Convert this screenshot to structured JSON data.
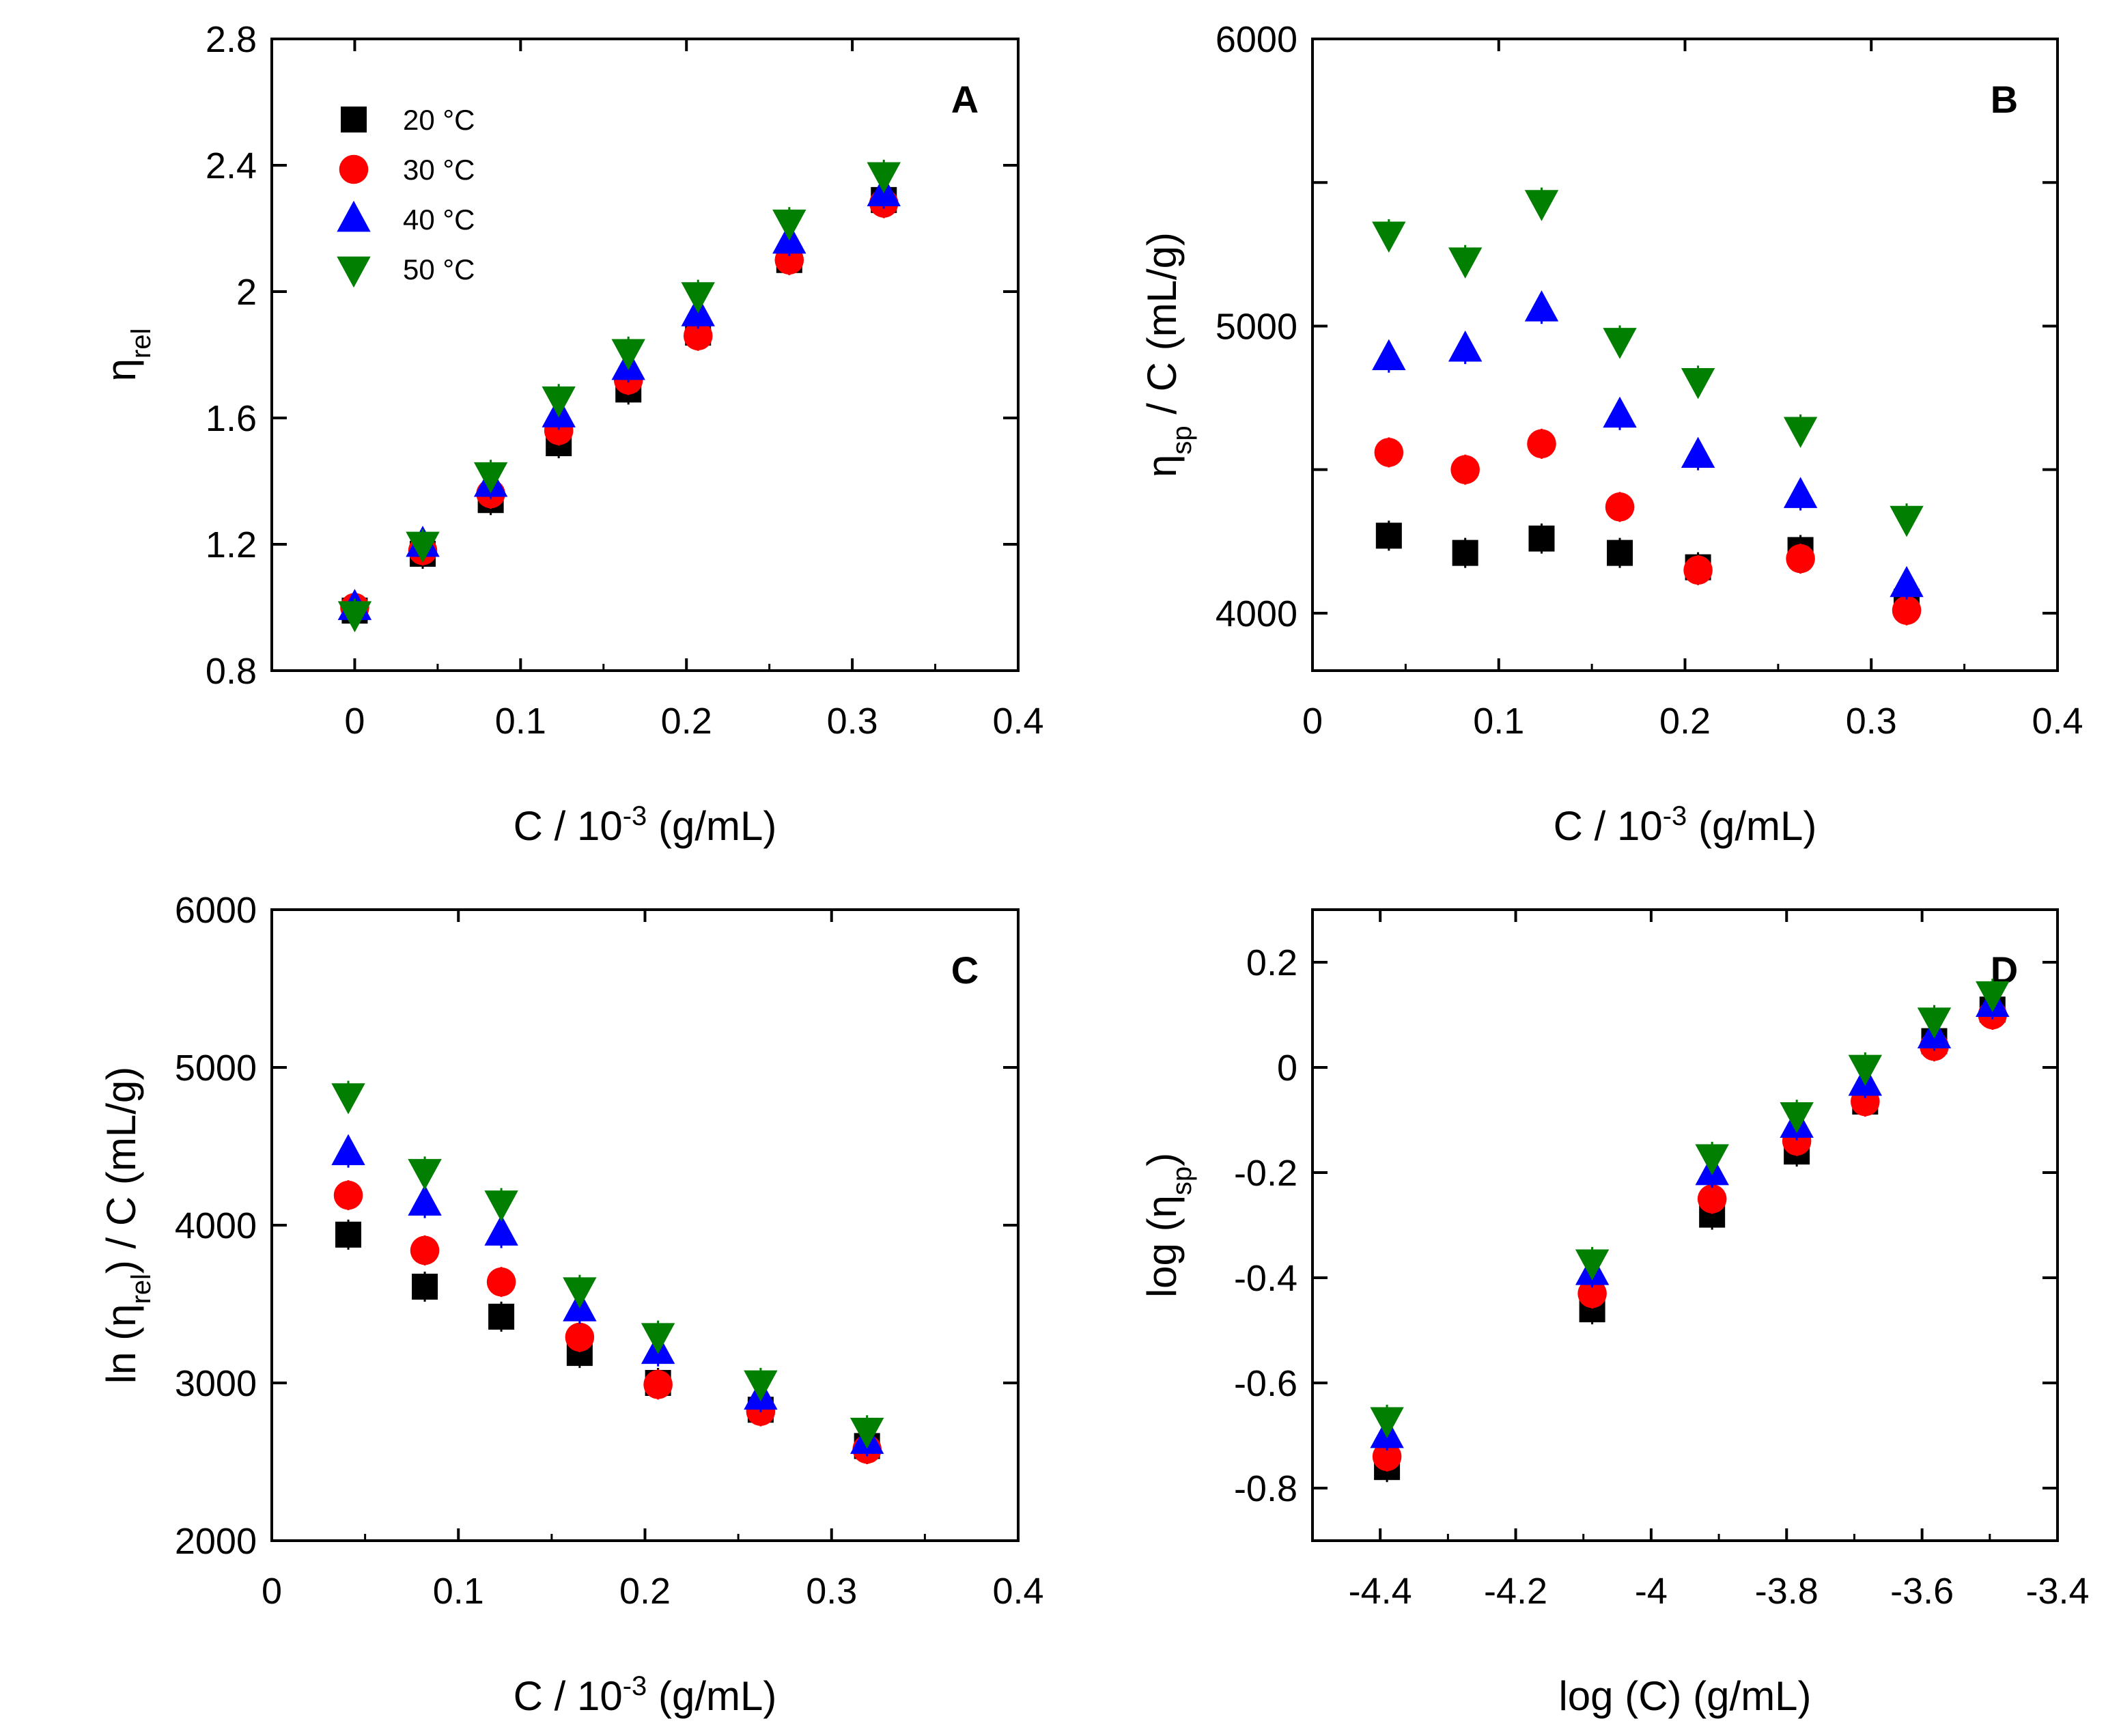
{
  "legend": {
    "entries": [
      {
        "label": "20 °C",
        "color": "#000000",
        "marker": "square"
      },
      {
        "label": "30 °C",
        "color": "#ff0000",
        "marker": "circle"
      },
      {
        "label": "40 °C",
        "color": "#0000ff",
        "marker": "triangle-up"
      },
      {
        "label": "50 °C",
        "color": "#007f00",
        "marker": "triangle-down"
      }
    ]
  },
  "chart_data": [
    {
      "panel": "A",
      "type": "scatter",
      "xlabel": "C / 10^-3 (g/mL)",
      "xlabel_parts": {
        "pre": "C / 10",
        "sup": "-3",
        "post": " (g/mL)"
      },
      "ylabel_parts": {
        "pre": "η",
        "sub": "rel",
        "post": ""
      },
      "xlim": [
        -0.05,
        0.4
      ],
      "ylim": [
        0.8,
        2.8
      ],
      "xticks": [
        0,
        0.1,
        0.2,
        0.3,
        0.4
      ],
      "xtick_labels": [
        "0",
        "0.1",
        "0.2",
        "0.3",
        "0.4"
      ],
      "yticks": [
        0.8,
        1.2,
        1.6,
        2.0,
        2.4,
        2.8
      ],
      "ytick_labels": [
        "0.8",
        "1.2",
        "1.6",
        "2",
        "2.4",
        "2.8"
      ],
      "x": [
        0,
        0.041,
        0.082,
        0.123,
        0.165,
        0.207,
        0.262,
        0.319
      ],
      "series": [
        {
          "name": "20 °C",
          "values": [
            0.99,
            1.17,
            1.34,
            1.52,
            1.69,
            1.87,
            2.1,
            2.29
          ]
        },
        {
          "name": "30 °C",
          "values": [
            1.0,
            1.18,
            1.36,
            1.56,
            1.72,
            1.86,
            2.1,
            2.28
          ]
        },
        {
          "name": "40 °C",
          "values": [
            1.0,
            1.2,
            1.39,
            1.61,
            1.76,
            1.93,
            2.16,
            2.31
          ]
        },
        {
          "name": "50 °C",
          "values": [
            0.98,
            1.2,
            1.42,
            1.66,
            1.81,
            1.99,
            2.22,
            2.37
          ]
        }
      ]
    },
    {
      "panel": "B",
      "type": "scatter",
      "xlabel": "C / 10^-3 (g/mL)",
      "xlabel_parts": {
        "pre": "C / 10",
        "sup": "-3",
        "post": " (g/mL)"
      },
      "ylabel_parts": {
        "pre": "η",
        "sub": "sp",
        "post": " / C (mL/g)"
      },
      "xlim": [
        0,
        0.4
      ],
      "ylim": [
        3800,
        6000
      ],
      "xticks": [
        0,
        0.1,
        0.2,
        0.3,
        0.4
      ],
      "xtick_labels": [
        "0",
        "0.1",
        "0.2",
        "0.3",
        "0.4"
      ],
      "yticks": [
        4000,
        5000,
        6000
      ],
      "ytick_labels": [
        "4000",
        "5000",
        "6000"
      ],
      "minor_yticks": [
        4500,
        5500
      ],
      "x": [
        0.041,
        0.082,
        0.123,
        0.165,
        0.207,
        0.262,
        0.319
      ],
      "series": [
        {
          "name": "20 °C",
          "values": [
            4270,
            4210,
            4260,
            4210,
            4160,
            4220,
            4040
          ]
        },
        {
          "name": "30 °C",
          "values": [
            4560,
            4500,
            4590,
            4370,
            4150,
            4190,
            4010
          ]
        },
        {
          "name": "40 °C",
          "values": [
            4890,
            4920,
            5060,
            4690,
            4550,
            4410,
            4100
          ]
        },
        {
          "name": "50 °C",
          "values": [
            5320,
            5230,
            5430,
            4950,
            4810,
            4640,
            4330
          ]
        }
      ]
    },
    {
      "panel": "C",
      "type": "scatter",
      "xlabel": "C / 10^-3 (g/mL)",
      "xlabel_parts": {
        "pre": "C / 10",
        "sup": "-3",
        "post": " (g/mL)"
      },
      "ylabel_parts": {
        "pre": "ln (η",
        "sub": "rel",
        "post": ") / C (mL/g)"
      },
      "xlim": [
        0,
        0.4
      ],
      "ylim": [
        2000,
        6000
      ],
      "xticks": [
        0,
        0.1,
        0.2,
        0.3,
        0.4
      ],
      "xtick_labels": [
        "0",
        "0.1",
        "0.2",
        "0.3",
        "0.4"
      ],
      "yticks": [
        2000,
        3000,
        4000,
        5000,
        6000
      ],
      "ytick_labels": [
        "2000",
        "3000",
        "4000",
        "5000",
        "6000"
      ],
      "x": [
        0.041,
        0.082,
        0.123,
        0.165,
        0.207,
        0.262,
        0.319
      ],
      "series": [
        {
          "name": "20 °C",
          "values": [
            3940,
            3610,
            3420,
            3190,
            3000,
            2830,
            2600
          ]
        },
        {
          "name": "30 °C",
          "values": [
            4190,
            3840,
            3640,
            3290,
            2990,
            2820,
            2580
          ]
        },
        {
          "name": "40 °C",
          "values": [
            4460,
            4140,
            3950,
            3470,
            3200,
            2910,
            2630
          ]
        },
        {
          "name": "50 °C",
          "values": [
            4820,
            4340,
            4140,
            3590,
            3300,
            3000,
            2700
          ]
        }
      ]
    },
    {
      "panel": "D",
      "type": "scatter",
      "xlabel": "log (C) (g/mL)",
      "xlabel_parts": {
        "pre": "log (C) (g/mL)",
        "sup": "",
        "post": ""
      },
      "ylabel_parts": {
        "pre": "log (η",
        "sub": "sp",
        "post": ")"
      },
      "xlim": [
        -4.5,
        -3.4
      ],
      "ylim": [
        -0.9,
        0.3
      ],
      "xticks": [
        -4.4,
        -4.2,
        -4.0,
        -3.8,
        -3.6,
        -3.4
      ],
      "xtick_labels": [
        "-4.4",
        "-4.2",
        "-4",
        "-3.8",
        "-3.6",
        "-3.4"
      ],
      "yticks": [
        -0.8,
        -0.6,
        -0.4,
        -0.2,
        0,
        0.2
      ],
      "ytick_labels": [
        "-0.8",
        "-0.6",
        "-0.4",
        "-0.2",
        "0",
        "0.2"
      ],
      "x": [
        -4.39,
        -4.087,
        -3.91,
        -3.785,
        -3.684,
        -3.582,
        -3.496
      ],
      "series": [
        {
          "name": "20 °C",
          "values": [
            -0.76,
            -0.46,
            -0.28,
            -0.16,
            -0.065,
            0.05,
            0.11
          ]
        },
        {
          "name": "30 °C",
          "values": [
            -0.74,
            -0.43,
            -0.25,
            -0.14,
            -0.065,
            0.04,
            0.1
          ]
        },
        {
          "name": "40 °C",
          "values": [
            -0.7,
            -0.39,
            -0.2,
            -0.11,
            -0.03,
            0.06,
            0.12
          ]
        },
        {
          "name": "50 °C",
          "values": [
            -0.67,
            -0.37,
            -0.17,
            -0.09,
            0.0,
            0.09,
            0.14
          ]
        }
      ]
    }
  ]
}
